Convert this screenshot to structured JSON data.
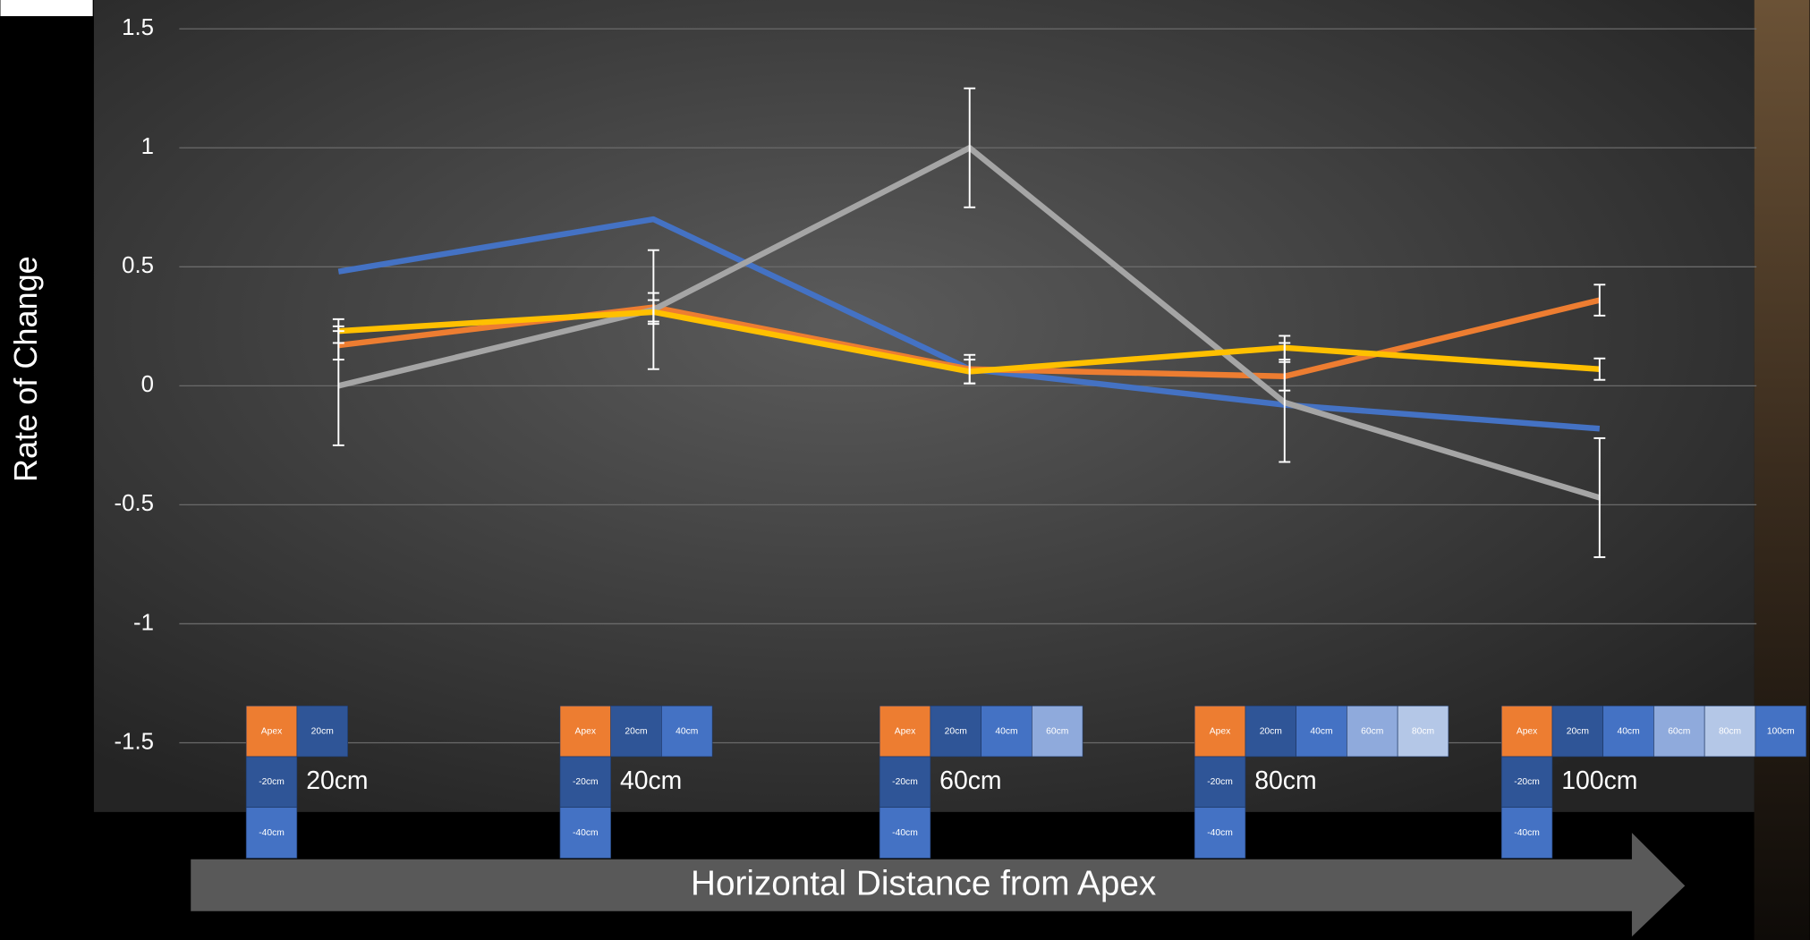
{
  "chart_data": {
    "type": "line",
    "ylabel": "Rate of Change",
    "xlabel": "Horizontal Distance from Apex",
    "categories": [
      "20cm",
      "40cm",
      "60cm",
      "80cm",
      "100cm"
    ],
    "series": [
      {
        "color": "#4472c4",
        "values": [
          0.48,
          0.7,
          0.07,
          -0.08,
          -0.18
        ]
      },
      {
        "color": "#ed7d31",
        "values": [
          0.17,
          0.33,
          0.07,
          0.04,
          0.36
        ],
        "errors": [
          0.06,
          0.06,
          0.06,
          0.06,
          0.065
        ]
      },
      {
        "color": "#a5a5a5",
        "values": [
          0,
          0.32,
          1.0,
          -0.07,
          -0.47
        ],
        "errors": [
          0.25,
          0.25,
          0.25,
          0.25,
          0.25
        ]
      },
      {
        "color": "#ffc000",
        "values": [
          0.23,
          0.31,
          0.06,
          0.16,
          0.07
        ],
        "errors": [
          0.05,
          0.05,
          0.05,
          0.05,
          0.045
        ]
      }
    ],
    "ylim": [
      -1.5,
      1.5
    ],
    "yticks": [
      -1.5,
      -1,
      -0.5,
      0,
      0.5,
      1,
      1.5
    ],
    "grid": true
  },
  "position_grids": [
    {
      "top": [
        "Apex",
        "20cm"
      ],
      "below": [
        "-20cm",
        "-40cm"
      ]
    },
    {
      "top": [
        "Apex",
        "20cm",
        "40cm"
      ],
      "below": [
        "-20cm",
        "-40cm"
      ]
    },
    {
      "top": [
        "Apex",
        "20cm",
        "40cm",
        "60cm"
      ],
      "below": [
        "-20cm",
        "-40cm"
      ]
    },
    {
      "top": [
        "Apex",
        "20cm",
        "40cm",
        "60cm",
        "80cm"
      ],
      "below": [
        "-20cm",
        "-40cm"
      ]
    },
    {
      "top": [
        "Apex",
        "20cm",
        "40cm",
        "60cm",
        "80cm",
        "100cm"
      ],
      "below": [
        "-20cm",
        "-40cm"
      ]
    }
  ]
}
